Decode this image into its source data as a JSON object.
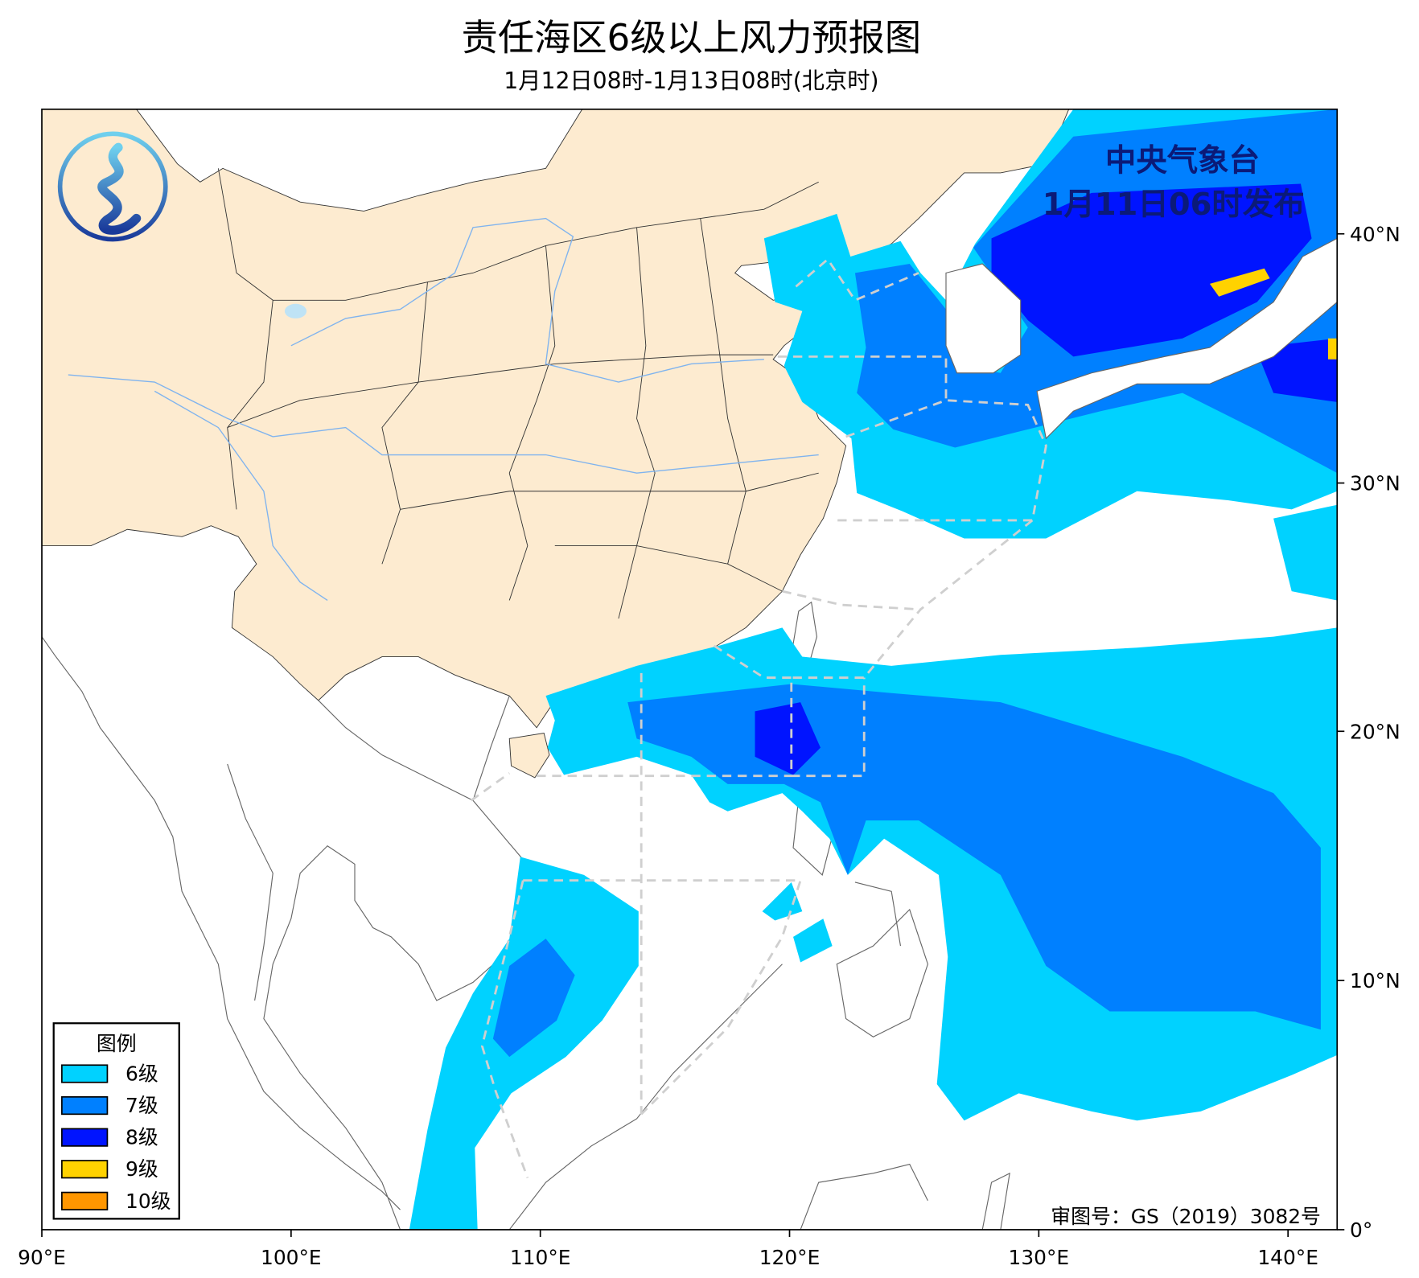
{
  "header": {
    "title": "责任海区6级以上风力预报图",
    "subtitle": "1月12日08时-1月13日08时(北京时)"
  },
  "issuer": {
    "name": "中央气象台",
    "issue_time": "1月11日06时发布"
  },
  "logo": {
    "icon": "cma-weather-logo",
    "colors": [
      "#5ec8ec",
      "#1a3a9a"
    ]
  },
  "axes": {
    "x_ticks": [
      "90°E",
      "100°E",
      "110°E",
      "120°E",
      "130°E",
      "140°E"
    ],
    "y_ticks": [
      "0°",
      "10°N",
      "20°N",
      "30°N",
      "40°N"
    ],
    "lon_range": [
      90,
      142
    ],
    "lat_range": [
      0,
      45
    ]
  },
  "legend": {
    "title": "图例",
    "items": [
      {
        "label": "6级",
        "color": "#00d2ff"
      },
      {
        "label": "7级",
        "color": "#0080ff"
      },
      {
        "label": "8级",
        "color": "#0014ff"
      },
      {
        "label": "9级",
        "color": "#ffd200"
      },
      {
        "label": "10级",
        "color": "#ff9600"
      }
    ]
  },
  "map_colors": {
    "land_china": "#fdebd0",
    "ocean": "#ffffff",
    "river": "#7fb3ee"
  },
  "approval": "审图号：GS（2019）3082号"
}
